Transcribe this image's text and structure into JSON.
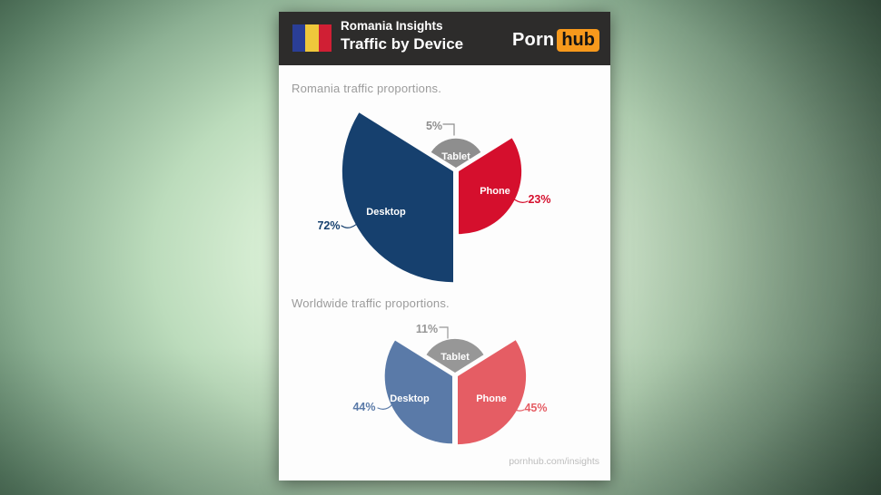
{
  "header": {
    "title_line1": "Romania Insights",
    "title_line2": "Traffic by Device",
    "bg": "#2d2c2b",
    "flag": {
      "name": "romania-flag",
      "stripe_colors": [
        "#2a3e96",
        "#efc83b",
        "#d01f34"
      ]
    },
    "brand": {
      "part1": "Porn",
      "part2": "hub",
      "hub_bg": "#f7991c",
      "hub_text": "#141414"
    }
  },
  "footer": {
    "text": "pornhub.com/insights"
  },
  "theme": {
    "card_bg": "#fdfdfd",
    "section_label_color": "#9b9b9b",
    "background_green_light": "#f2fbef",
    "background_green_dark": "#0b130d"
  },
  "chart_data": [
    {
      "type": "pie",
      "variant": "equal-angle-rose",
      "title": "Romania traffic proportions.",
      "unit": "%",
      "note": "three 120-degree sectors, radius proportional to sqrt(share)",
      "slices": [
        {
          "label": "Desktop",
          "value_pct": 72,
          "color": "#16406e"
        },
        {
          "label": "Phone",
          "value_pct": 23,
          "color": "#d50f2d"
        },
        {
          "label": "Tablet",
          "value_pct": 5,
          "color": "#8e8e8e"
        }
      ]
    },
    {
      "type": "pie",
      "variant": "equal-angle-rose",
      "title": "Worldwide traffic proportions.",
      "unit": "%",
      "note": "three 120-degree sectors, radius proportional to sqrt(share)",
      "slices": [
        {
          "label": "Desktop",
          "value_pct": 44,
          "color": "#5a7aa8"
        },
        {
          "label": "Phone",
          "value_pct": 45,
          "color": "#e55d64"
        },
        {
          "label": "Tablet",
          "value_pct": 11,
          "color": "#979797"
        }
      ]
    }
  ]
}
